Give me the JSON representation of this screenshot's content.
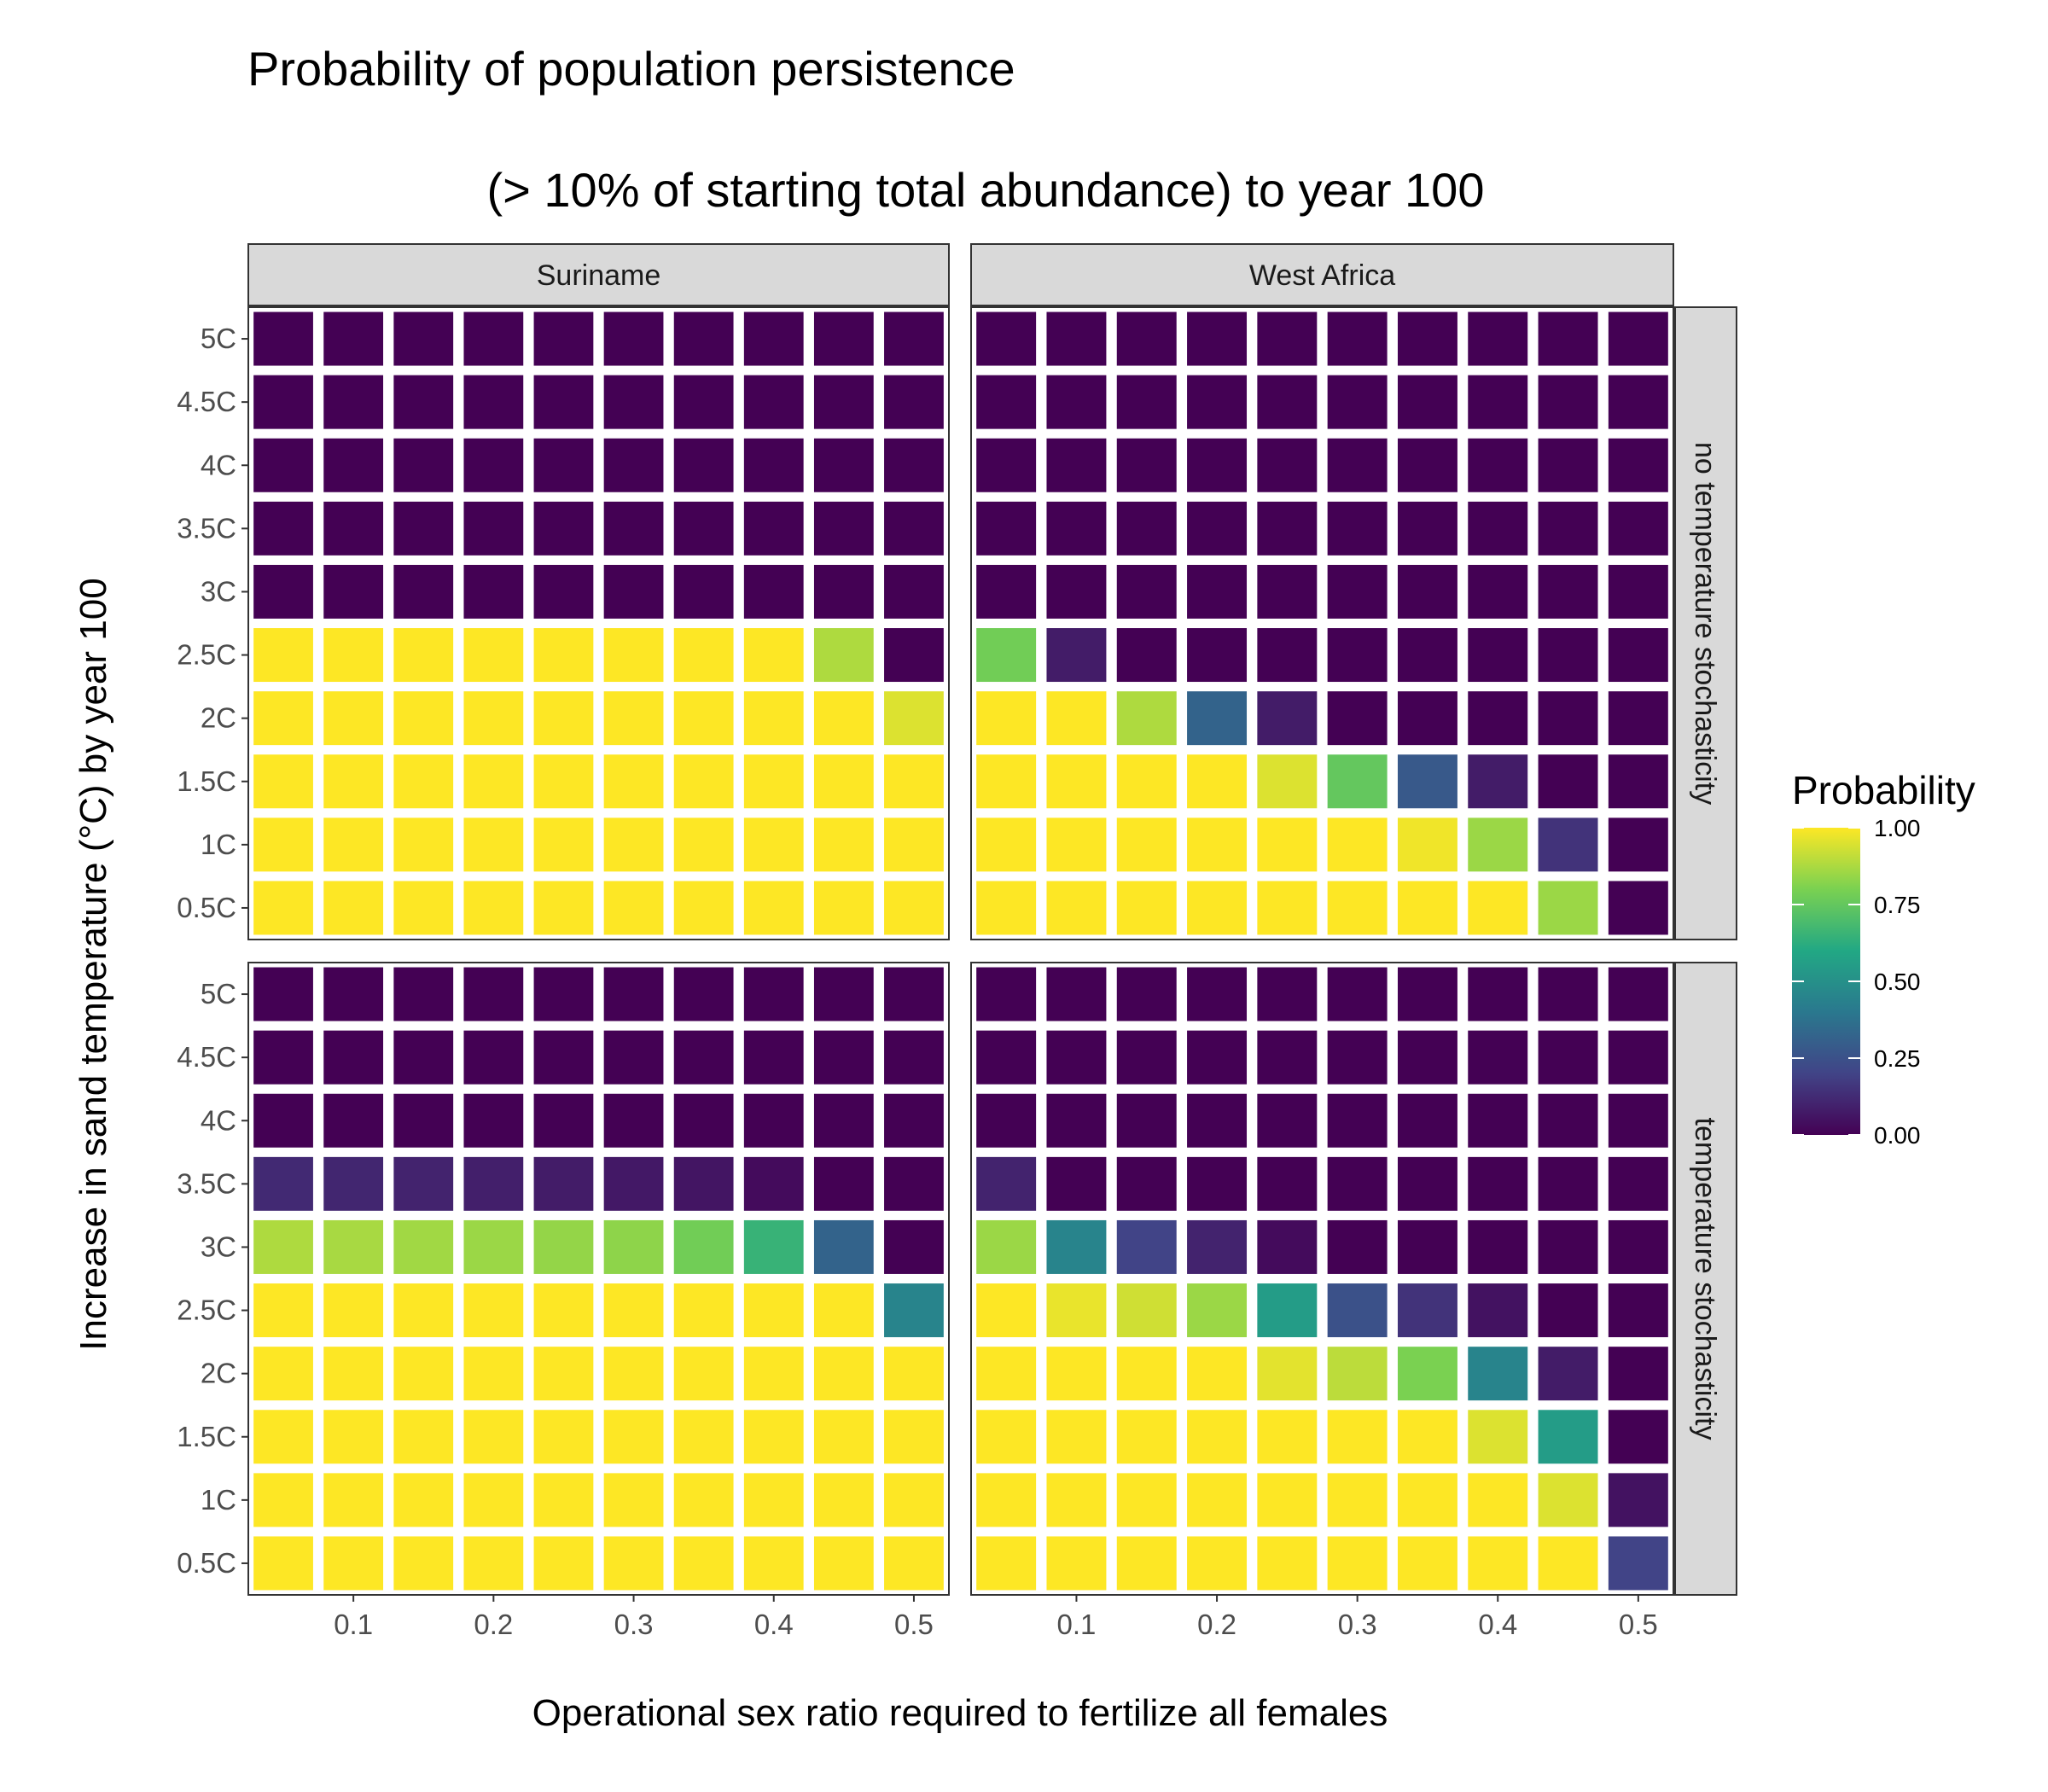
{
  "chart_data": {
    "type": "heatmap",
    "title_line1": "Probability of population persistence",
    "title_line2": "(> 10% of starting total abundance) to year 100",
    "xlabel": "Operational sex ratio required to fertilize all females",
    "ylabel": "Increase in sand temperature (°C) by year 100",
    "x": [
      0.05,
      0.1,
      0.15,
      0.2,
      0.25,
      0.3,
      0.35,
      0.4,
      0.45,
      0.5
    ],
    "x_ticks": [
      0.1,
      0.2,
      0.3,
      0.4,
      0.5
    ],
    "x_tick_labels": [
      "0.1",
      "0.2",
      "0.3",
      "0.4",
      "0.5"
    ],
    "y_categories": [
      "0.5C",
      "1C",
      "1.5C",
      "2C",
      "2.5C",
      "3C",
      "3.5C",
      "4C",
      "4.5C",
      "5C"
    ],
    "columns": [
      "Suriname",
      "West Africa"
    ],
    "rows": [
      "no temperature stochasticity",
      "temperature stochasticity"
    ],
    "legend": {
      "title": "Probability",
      "ticks": [
        1.0,
        0.75,
        0.5,
        0.25,
        0.0
      ],
      "tick_labels": [
        "1.00",
        "0.75",
        "0.50",
        "0.25",
        "0.00"
      ],
      "colormap": "viridis"
    },
    "panels": [
      {
        "column": "Suriname",
        "row": "no temperature stochasticity",
        "values_by_temp_low_to_high": [
          [
            1,
            1,
            1,
            1,
            1,
            1,
            1,
            1,
            1,
            1
          ],
          [
            1,
            1,
            1,
            1,
            1,
            1,
            1,
            1,
            1,
            1
          ],
          [
            1,
            1,
            1,
            1,
            1,
            1,
            1,
            1,
            1,
            1
          ],
          [
            1,
            1,
            1,
            1,
            1,
            1,
            1,
            1,
            1,
            0.95
          ],
          [
            1,
            1,
            1,
            1,
            1,
            1,
            1,
            1,
            0.88,
            0
          ],
          [
            0,
            0,
            0,
            0,
            0,
            0,
            0,
            0,
            0,
            0
          ],
          [
            0,
            0,
            0,
            0,
            0,
            0,
            0,
            0,
            0,
            0
          ],
          [
            0,
            0,
            0,
            0,
            0,
            0,
            0,
            0,
            0,
            0
          ],
          [
            0,
            0,
            0,
            0,
            0,
            0,
            0,
            0,
            0,
            0
          ],
          [
            0,
            0,
            0,
            0,
            0,
            0,
            0,
            0,
            0,
            0
          ]
        ]
      },
      {
        "column": "West Africa",
        "row": "no temperature stochasticity",
        "values_by_temp_low_to_high": [
          [
            1,
            1,
            1,
            1,
            1,
            1,
            1,
            1,
            0.85,
            0
          ],
          [
            1,
            1,
            1,
            1,
            1,
            1,
            0.98,
            0.85,
            0.15,
            0
          ],
          [
            1,
            1,
            1,
            1,
            0.95,
            0.75,
            0.28,
            0.08,
            0,
            0
          ],
          [
            1,
            1,
            0.88,
            0.32,
            0.08,
            0,
            0,
            0,
            0,
            0
          ],
          [
            0.78,
            0.08,
            0,
            0,
            0,
            0,
            0,
            0,
            0,
            0
          ],
          [
            0,
            0,
            0,
            0,
            0,
            0,
            0,
            0,
            0,
            0
          ],
          [
            0,
            0,
            0,
            0,
            0,
            0,
            0,
            0,
            0,
            0
          ],
          [
            0,
            0,
            0,
            0,
            0,
            0,
            0,
            0,
            0,
            0
          ],
          [
            0,
            0,
            0,
            0,
            0,
            0,
            0,
            0,
            0,
            0
          ],
          [
            0,
            0,
            0,
            0,
            0,
            0,
            0,
            0,
            0,
            0
          ]
        ]
      },
      {
        "column": "Suriname",
        "row": "temperature stochasticity",
        "values_by_temp_low_to_high": [
          [
            1,
            1,
            1,
            1,
            1,
            1,
            1,
            1,
            1,
            1
          ],
          [
            1,
            1,
            1,
            1,
            1,
            1,
            1,
            1,
            1,
            1
          ],
          [
            1,
            1,
            1,
            1,
            1,
            1,
            1,
            1,
            1,
            1
          ],
          [
            1,
            1,
            1,
            1,
            1,
            1,
            1,
            1,
            1,
            1
          ],
          [
            1,
            1,
            1,
            1,
            1,
            1,
            1,
            1,
            1,
            0.45
          ],
          [
            0.88,
            0.87,
            0.86,
            0.85,
            0.84,
            0.83,
            0.78,
            0.65,
            0.32,
            0
          ],
          [
            0.12,
            0.11,
            0.1,
            0.09,
            0.08,
            0.07,
            0.06,
            0.03,
            0,
            0
          ],
          [
            0,
            0,
            0,
            0,
            0,
            0,
            0,
            0,
            0,
            0
          ],
          [
            0,
            0,
            0,
            0,
            0,
            0,
            0,
            0,
            0,
            0
          ],
          [
            0,
            0,
            0,
            0,
            0,
            0,
            0,
            0,
            0,
            0
          ]
        ]
      },
      {
        "column": "West Africa",
        "row": "temperature stochasticity",
        "values_by_temp_low_to_high": [
          [
            1,
            1,
            1,
            1,
            1,
            1,
            1,
            1,
            1,
            0.2
          ],
          [
            1,
            1,
            1,
            1,
            1,
            1,
            1,
            1,
            0.95,
            0.05
          ],
          [
            1,
            1,
            1,
            1,
            1,
            1,
            1,
            0.95,
            0.55,
            0
          ],
          [
            1,
            1,
            1,
            1,
            0.96,
            0.9,
            0.8,
            0.45,
            0.08,
            0
          ],
          [
            1,
            0.97,
            0.93,
            0.85,
            0.55,
            0.25,
            0.15,
            0.05,
            0,
            0
          ],
          [
            0.85,
            0.45,
            0.2,
            0.1,
            0.03,
            0,
            0,
            0,
            0,
            0
          ],
          [
            0.1,
            0,
            0,
            0,
            0,
            0,
            0,
            0,
            0,
            0
          ],
          [
            0,
            0,
            0,
            0,
            0,
            0,
            0,
            0,
            0,
            0
          ],
          [
            0,
            0,
            0,
            0,
            0,
            0,
            0,
            0,
            0,
            0
          ],
          [
            0,
            0,
            0,
            0,
            0,
            0,
            0,
            0,
            0,
            0
          ]
        ]
      }
    ]
  }
}
